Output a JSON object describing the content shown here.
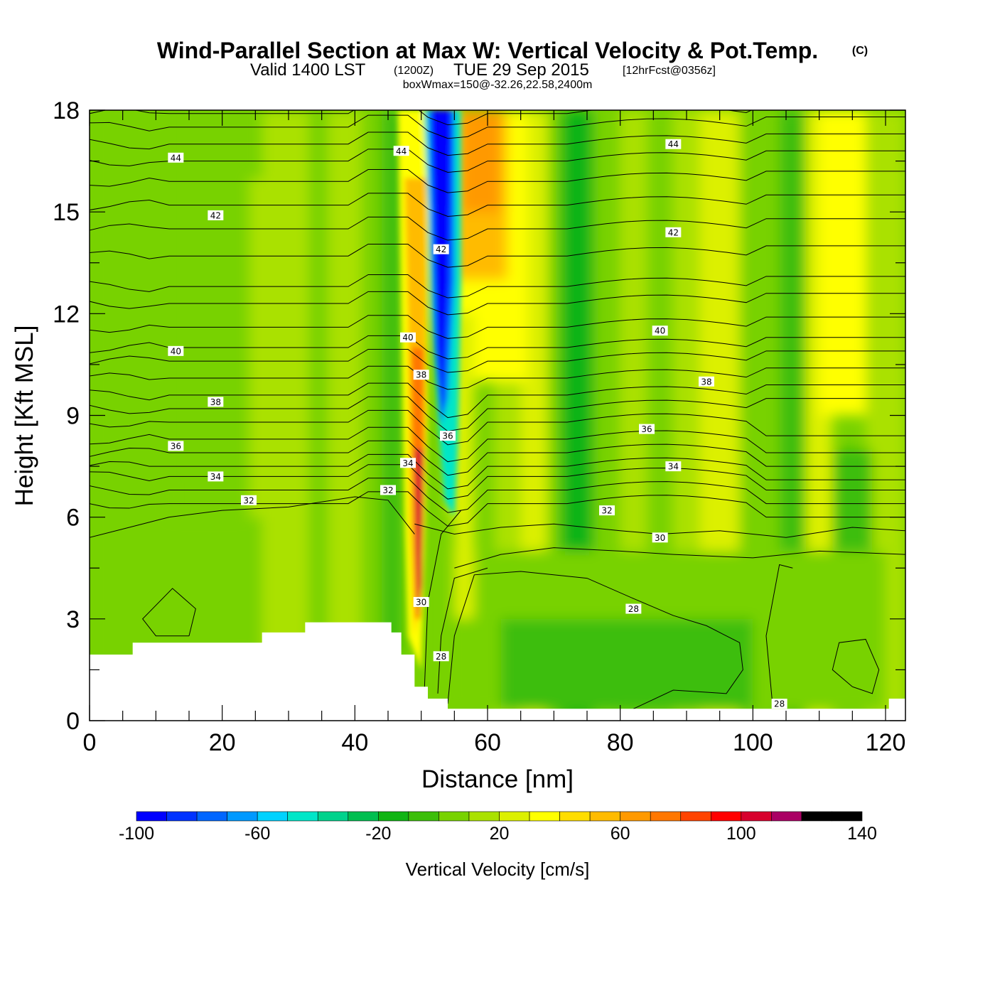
{
  "header": {
    "title": "Wind-Parallel Section at Max W: Vertical Velocity & Pot.Temp.",
    "copyright": "(C)",
    "valid_prefix": "Valid 1400 LST",
    "valid_utc": "(1200Z)",
    "valid_date": "TUE 29 Sep 2015",
    "forecast": "[12hrFcst@0356z]",
    "boxinfo": "boxWmax=150@-32.26,22.58,2400m"
  },
  "chart_data": {
    "type": "heatmap",
    "xlabel": "Distance [nm]",
    "ylabel": "Height [Kft MSL]",
    "xlim": [
      0,
      123
    ],
    "ylim": [
      0,
      18
    ],
    "x_ticks": [
      0,
      20,
      40,
      60,
      80,
      100,
      120
    ],
    "y_ticks": [
      0,
      3,
      6,
      9,
      12,
      15,
      18
    ],
    "colorbar": {
      "label": "Vertical Velocity [cm/s]",
      "min": -100,
      "max": 140,
      "step": 10,
      "tick_values": [
        -100,
        -60,
        -20,
        20,
        60,
        100,
        140
      ],
      "colors": [
        "#0000ff",
        "#0033ff",
        "#0066ff",
        "#0099ff",
        "#00d2ff",
        "#00e6c8",
        "#00d28c",
        "#00be50",
        "#10b414",
        "#3cbe0a",
        "#78d200",
        "#aae100",
        "#dcf000",
        "#ffff00",
        "#ffdd00",
        "#ffbb00",
        "#ff9900",
        "#ff7700",
        "#ff4400",
        "#ff0000",
        "#d7002d",
        "#aa0064"
      ]
    },
    "field_description_values": {
      "background_w": 5,
      "downdraft_core_min": -95,
      "updraft_core_max": 115,
      "downstream_updraft_max": 60
    },
    "contours": {
      "field": "Potential Temperature",
      "interval": 1,
      "labels": [
        {
          "value": "44",
          "x": 13,
          "y": 16.6
        },
        {
          "value": "44",
          "x": 47,
          "y": 16.8
        },
        {
          "value": "44",
          "x": 88,
          "y": 17.0
        },
        {
          "value": "42",
          "x": 19,
          "y": 14.9
        },
        {
          "value": "42",
          "x": 53,
          "y": 13.9
        },
        {
          "value": "42",
          "x": 88,
          "y": 14.4
        },
        {
          "value": "40",
          "x": 13,
          "y": 10.9
        },
        {
          "value": "40",
          "x": 48,
          "y": 11.3
        },
        {
          "value": "40",
          "x": 86,
          "y": 11.5
        },
        {
          "value": "38",
          "x": 19,
          "y": 9.4
        },
        {
          "value": "38",
          "x": 50,
          "y": 10.2
        },
        {
          "value": "38",
          "x": 93,
          "y": 10.0
        },
        {
          "value": "36",
          "x": 13,
          "y": 8.1
        },
        {
          "value": "36",
          "x": 54,
          "y": 8.4
        },
        {
          "value": "36",
          "x": 84,
          "y": 8.6
        },
        {
          "value": "34",
          "x": 19,
          "y": 7.2
        },
        {
          "value": "34",
          "x": 48,
          "y": 7.6
        },
        {
          "value": "34",
          "x": 88,
          "y": 7.5
        },
        {
          "value": "32",
          "x": 24,
          "y": 6.5
        },
        {
          "value": "32",
          "x": 45,
          "y": 6.8
        },
        {
          "value": "32",
          "x": 78,
          "y": 6.2
        },
        {
          "value": "30",
          "x": 50,
          "y": 3.5
        },
        {
          "value": "30",
          "x": 86,
          "y": 5.4
        },
        {
          "value": "28",
          "x": 53,
          "y": 1.9
        },
        {
          "value": "28",
          "x": 82,
          "y": 3.3
        },
        {
          "value": "28",
          "x": 104,
          "y": 0.5
        }
      ]
    },
    "terrain_kft": [
      {
        "x": 0,
        "h": 1.95
      },
      {
        "x": 6.5,
        "h": 1.95
      },
      {
        "x": 6.5,
        "h": 2.3
      },
      {
        "x": 26,
        "h": 2.3
      },
      {
        "x": 26,
        "h": 2.6
      },
      {
        "x": 32.5,
        "h": 2.6
      },
      {
        "x": 32.5,
        "h": 2.9
      },
      {
        "x": 45.5,
        "h": 2.9
      },
      {
        "x": 45.5,
        "h": 2.6
      },
      {
        "x": 47,
        "h": 2.6
      },
      {
        "x": 47,
        "h": 1.95
      },
      {
        "x": 49,
        "h": 1.95
      },
      {
        "x": 49,
        "h": 1.0
      },
      {
        "x": 51,
        "h": 1.0
      },
      {
        "x": 51,
        "h": 0.65
      },
      {
        "x": 54,
        "h": 0.65
      },
      {
        "x": 54,
        "h": 0.35
      },
      {
        "x": 120.5,
        "h": 0.35
      },
      {
        "x": 120.5,
        "h": 0.65
      },
      {
        "x": 123,
        "h": 0.65
      }
    ]
  }
}
